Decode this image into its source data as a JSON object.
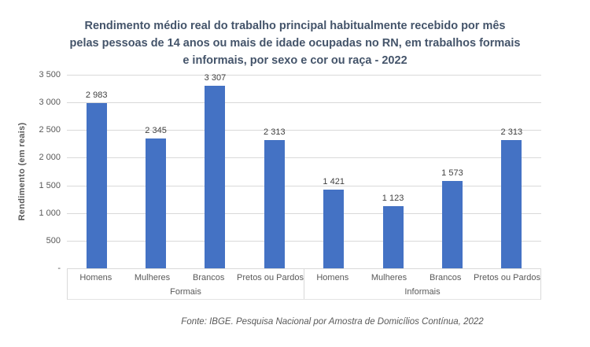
{
  "chart_data": {
    "type": "bar",
    "title": "Rendimento médio real do trabalho principal habitualmente recebido por mês pelas pessoas de 14 anos ou mais de idade ocupadas no RN, em trabalhos formais e informais, por sexo e cor ou raça - 2022",
    "title_lines": [
      "Rendimento médio real do trabalho principal habitualmente recebido por mês",
      "pelas pessoas de 14 anos ou mais de idade ocupadas no RN, em trabalhos formais",
      "e informais, por sexo e cor ou raça - 2022"
    ],
    "xlabel": "",
    "ylabel": "Rendimento (em reais)",
    "ylim": [
      0,
      3500
    ],
    "grid": true,
    "legend": "none",
    "yticks": [
      {
        "value": 3500,
        "label": "3 500"
      },
      {
        "value": 3000,
        "label": "3 000"
      },
      {
        "value": 2500,
        "label": "2 500"
      },
      {
        "value": 2000,
        "label": "2 000"
      },
      {
        "value": 1500,
        "label": "1 500"
      },
      {
        "value": 1000,
        "label": "1 000"
      },
      {
        "value": 500,
        "label": "500"
      },
      {
        "value": 0,
        "label": "-"
      }
    ],
    "groups": [
      {
        "label": "Formais",
        "categories": [
          "Homens",
          "Mulheres",
          "Brancos",
          "Pretos ou Pardos"
        ],
        "values": [
          2983,
          2345,
          3307,
          2313
        ],
        "value_labels": [
          "2 983",
          "2 345",
          "3 307",
          "2 313"
        ]
      },
      {
        "label": "Informais",
        "categories": [
          "Homens",
          "Mulheres",
          "Brancos",
          "Pretos ou Pardos"
        ],
        "values": [
          1421,
          1123,
          1573,
          2313
        ],
        "value_labels": [
          "1 421",
          "1 123",
          "1 573",
          "2 313"
        ]
      }
    ]
  },
  "source": "Fonte: IBGE. Pesquisa Nacional por Amostra de Domicílios Contínua, 2022",
  "colors": {
    "bar": "#4472C4",
    "title": "#44546A",
    "axis_text": "#595959",
    "data_label": "#404040",
    "gridline": "#D9D9D9"
  }
}
